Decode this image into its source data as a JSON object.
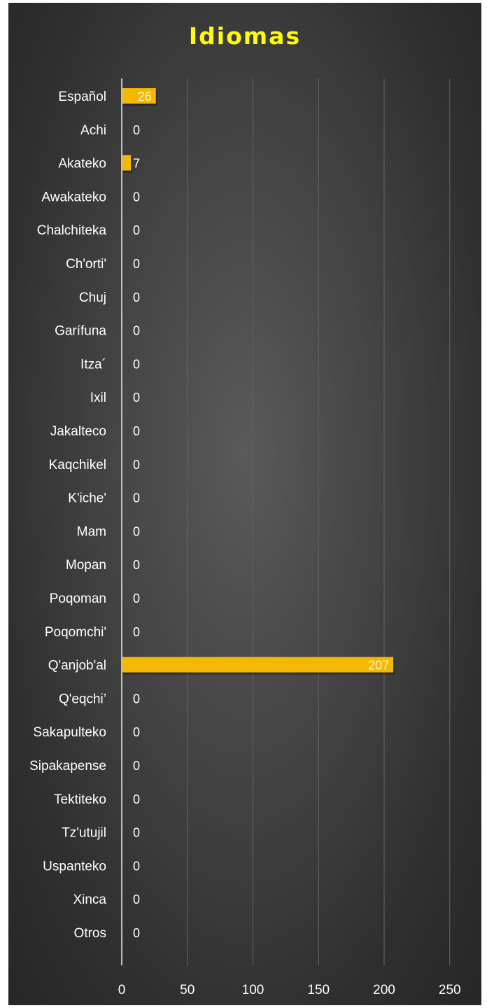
{
  "chart_data": {
    "type": "bar",
    "orientation": "horizontal",
    "title": "Idiomas",
    "categories": [
      "Español",
      "Achi",
      "Akateko",
      "Awakateko",
      "Chalchiteka",
      "Ch'orti'",
      "Chuj",
      "Garífuna",
      "Itza´",
      "Ixil",
      "Jakalteco",
      "Kaqchikel",
      "K'iche'",
      "Mam",
      "Mopan",
      "Poqoman",
      "Poqomchi'",
      "Q'anjob'al",
      "Q'eqchi’",
      "Sakapulteko",
      "Sipakapense",
      "Tektiteko",
      "Tz'utujil",
      "Uspanteko",
      "Xinca",
      "Otros"
    ],
    "values": [
      26,
      0,
      7,
      0,
      0,
      0,
      0,
      0,
      0,
      0,
      0,
      0,
      0,
      0,
      0,
      0,
      0,
      207,
      0,
      0,
      0,
      0,
      0,
      0,
      0,
      0
    ],
    "xlim": [
      0,
      250
    ],
    "xticks": [
      "0",
      "50",
      "100",
      "150",
      "200",
      "250"
    ],
    "grid": true,
    "legend": "none",
    "colors": {
      "bar": "#f5b800",
      "title": "#ffff00",
      "background": "#3f3f3f",
      "gridline": "#5f5f5f",
      "text": "#ffffff"
    }
  }
}
